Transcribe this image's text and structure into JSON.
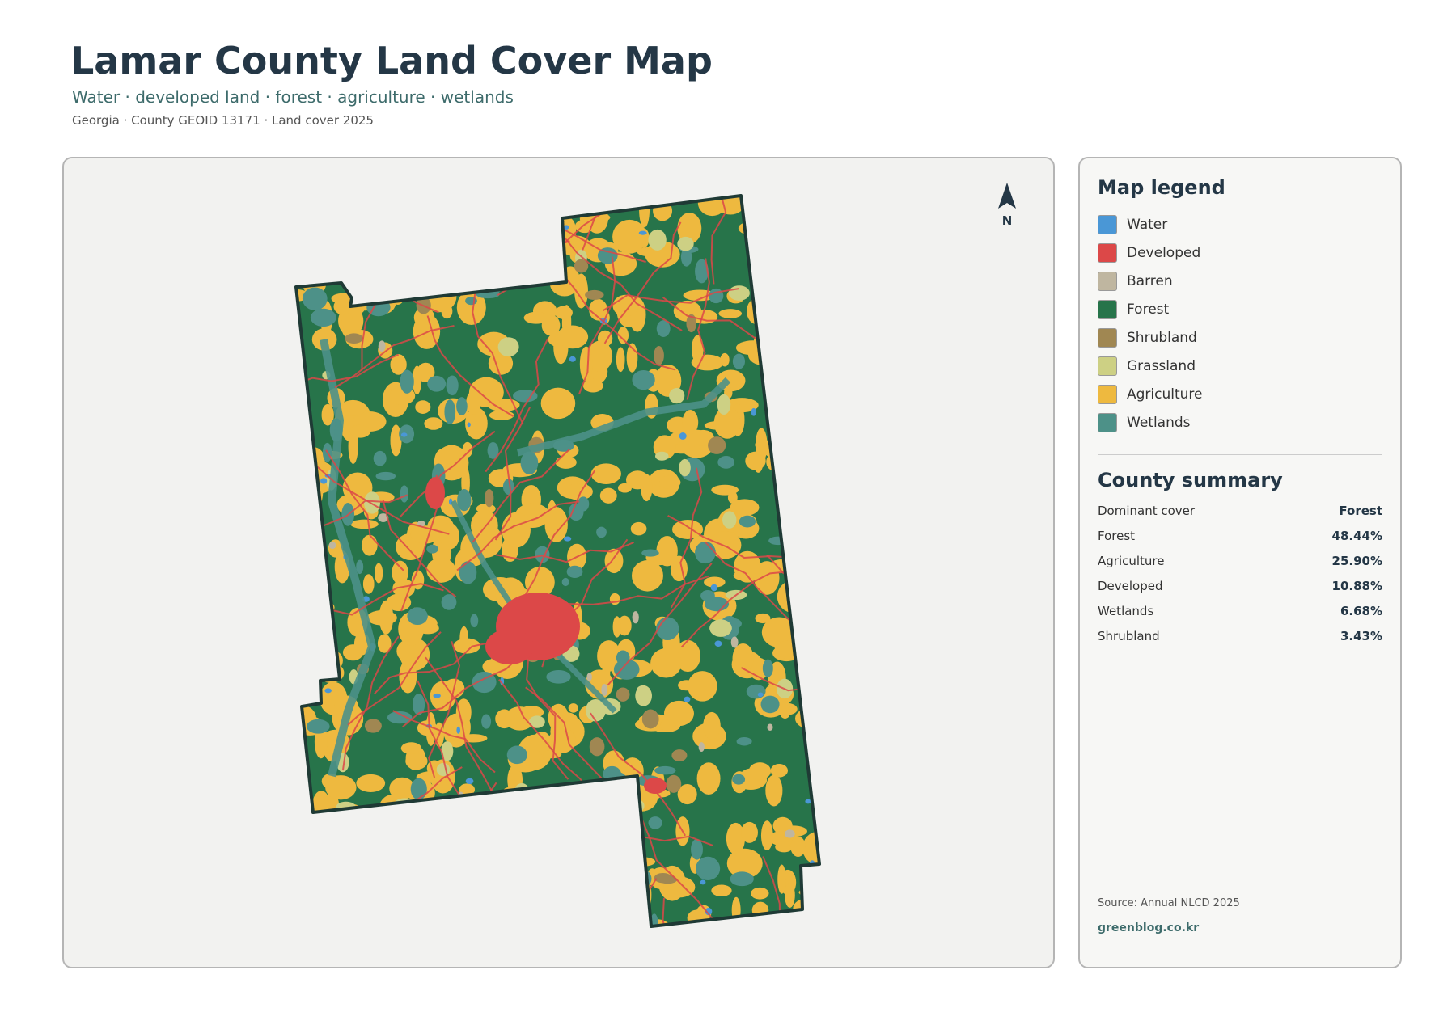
{
  "header": {
    "title": "Lamar County Land Cover Map",
    "subtitle": "Water · developed land · forest · agriculture · wetlands",
    "meta": "Georgia · County GEOID 13171 · Land cover 2025"
  },
  "map": {
    "north_label": "N"
  },
  "legend": {
    "title": "Map legend",
    "items": [
      {
        "label": "Water",
        "color": "#4a97d6"
      },
      {
        "label": "Developed",
        "color": "#dc4848"
      },
      {
        "label": "Barren",
        "color": "#bfb6a0"
      },
      {
        "label": "Forest",
        "color": "#27744a"
      },
      {
        "label": "Shrubland",
        "color": "#a08752"
      },
      {
        "label": "Grassland",
        "color": "#cdd084"
      },
      {
        "label": "Agriculture",
        "color": "#eeb93f"
      },
      {
        "label": "Wetlands",
        "color": "#4d9188"
      }
    ]
  },
  "summary": {
    "title": "County summary",
    "rows": [
      {
        "label": "Dominant cover",
        "value": "Forest"
      },
      {
        "label": "Forest",
        "value": "48.44%"
      },
      {
        "label": "Agriculture",
        "value": "25.90%"
      },
      {
        "label": "Developed",
        "value": "10.88%"
      },
      {
        "label": "Wetlands",
        "value": "6.68%"
      },
      {
        "label": "Shrubland",
        "value": "3.43%"
      }
    ]
  },
  "footer": {
    "source": "Source: Annual NLCD 2025",
    "credit": "greenblog.co.kr"
  }
}
